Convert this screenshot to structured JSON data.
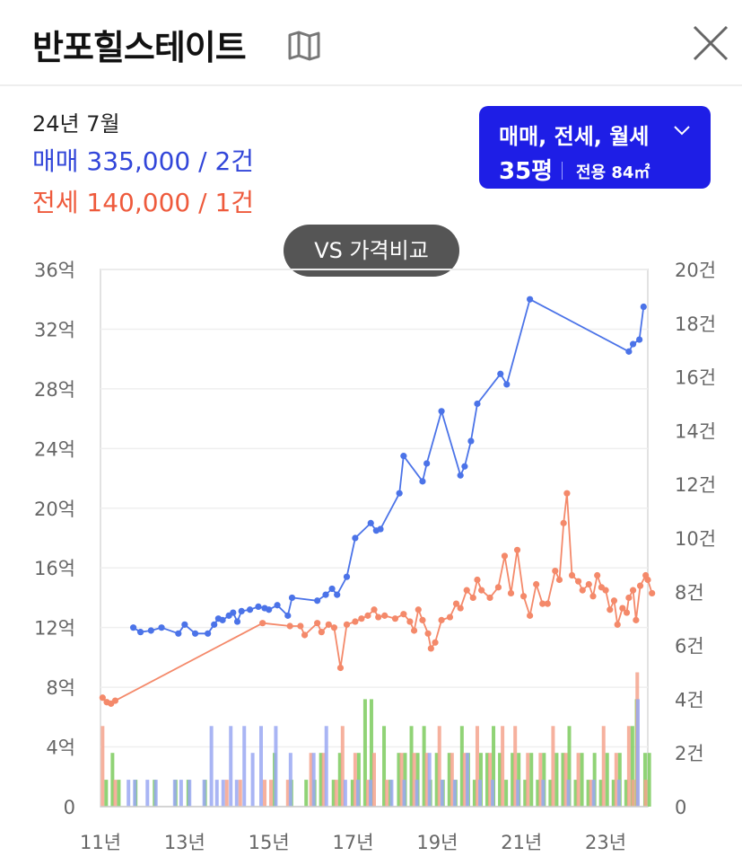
{
  "header": {
    "title": "반포힐스테이트",
    "map_icon": "map-icon",
    "close_icon": "close-icon"
  },
  "summary": {
    "period": "24년 7월",
    "sale_line": "매매 335,000 / 2건",
    "jeonse_line": "전세 140,000 / 1건"
  },
  "filter": {
    "types_label": "매매, 전세, 월세",
    "size_label": "35평",
    "area_label": "전용 84㎡"
  },
  "vs_button": {
    "label": "VS 가격비교"
  },
  "colors": {
    "sale": "#4b73e8",
    "jeonse": "#f4896a",
    "volume_sale": "#9aa8f2",
    "volume_jeonse": "#f5a38d",
    "volume_wolse": "#7ccb5e",
    "brand": "#1e1ee6"
  },
  "chart_data": {
    "type": "line",
    "x_unit": "year",
    "xlim": [
      2011.0,
      2024.0
    ],
    "y_left_lim": [
      0,
      36
    ],
    "y_left_ticks": [
      "0",
      "4억",
      "8억",
      "12억",
      "16억",
      "20억",
      "24억",
      "28억",
      "32억",
      "36억"
    ],
    "y_right_lim": [
      0,
      20
    ],
    "y_right_ticks": [
      "0",
      "2건",
      "4건",
      "6건",
      "8건",
      "10건",
      "12건",
      "14건",
      "16건",
      "18건",
      "20건"
    ],
    "x_ticks": [
      {
        "label": "11년",
        "x": 2011.0
      },
      {
        "label": "13년",
        "x": 2013.0
      },
      {
        "label": "15년",
        "x": 2015.0
      },
      {
        "label": "17년",
        "x": 2017.0
      },
      {
        "label": "19년",
        "x": 2019.0
      },
      {
        "label": "21년",
        "x": 2021.0
      },
      {
        "label": "23년",
        "x": 2023.0
      }
    ],
    "grid": true,
    "series": [
      {
        "key": "sale",
        "points": [
          [
            2011.78,
            12.0
          ],
          [
            2011.95,
            11.7
          ],
          [
            2012.2,
            11.8
          ],
          [
            2012.45,
            12.0
          ],
          [
            2012.85,
            11.6
          ],
          [
            2013.0,
            12.2
          ],
          [
            2013.25,
            11.6
          ],
          [
            2013.55,
            11.6
          ],
          [
            2013.7,
            12.2
          ],
          [
            2013.8,
            12.6
          ],
          [
            2013.9,
            12.5
          ],
          [
            2014.05,
            12.8
          ],
          [
            2014.15,
            13.0
          ],
          [
            2014.25,
            12.4
          ],
          [
            2014.35,
            13.1
          ],
          [
            2014.55,
            13.2
          ],
          [
            2014.75,
            13.4
          ],
          [
            2014.9,
            13.3
          ],
          [
            2015.0,
            13.2
          ],
          [
            2015.2,
            13.5
          ],
          [
            2015.45,
            12.8
          ],
          [
            2015.55,
            14.0
          ],
          [
            2016.15,
            13.8
          ],
          [
            2016.35,
            14.2
          ],
          [
            2016.5,
            14.6
          ],
          [
            2016.62,
            14.2
          ],
          [
            2016.85,
            15.4
          ],
          [
            2017.05,
            18.0
          ],
          [
            2017.42,
            19.0
          ],
          [
            2017.55,
            18.5
          ],
          [
            2017.65,
            18.6
          ],
          [
            2018.1,
            21.0
          ],
          [
            2018.2,
            23.5
          ],
          [
            2018.65,
            21.8
          ],
          [
            2018.75,
            23.0
          ],
          [
            2019.1,
            26.5
          ],
          [
            2019.55,
            22.2
          ],
          [
            2019.65,
            22.8
          ],
          [
            2019.8,
            24.5
          ],
          [
            2019.95,
            27.0
          ],
          [
            2020.5,
            29.0
          ],
          [
            2020.65,
            28.3
          ],
          [
            2021.2,
            34.0
          ],
          [
            2023.55,
            30.5
          ],
          [
            2023.65,
            31.0
          ],
          [
            2023.8,
            31.3
          ],
          [
            2023.9,
            33.5
          ]
        ]
      },
      {
        "key": "jeonse",
        "points": [
          [
            2011.05,
            7.3
          ],
          [
            2011.15,
            7.0
          ],
          [
            2011.25,
            6.9
          ],
          [
            2011.35,
            7.1
          ],
          [
            2014.85,
            12.3
          ],
          [
            2015.5,
            12.1
          ],
          [
            2015.75,
            12.1
          ],
          [
            2015.85,
            11.5
          ],
          [
            2016.15,
            12.3
          ],
          [
            2016.25,
            11.7
          ],
          [
            2016.42,
            12.2
          ],
          [
            2016.55,
            12.0
          ],
          [
            2016.7,
            9.3
          ],
          [
            2016.85,
            12.2
          ],
          [
            2017.05,
            12.4
          ],
          [
            2017.2,
            12.6
          ],
          [
            2017.35,
            12.8
          ],
          [
            2017.5,
            13.2
          ],
          [
            2017.6,
            12.7
          ],
          [
            2017.75,
            12.8
          ],
          [
            2018.0,
            12.6
          ],
          [
            2018.2,
            12.9
          ],
          [
            2018.35,
            12.4
          ],
          [
            2018.45,
            11.8
          ],
          [
            2018.55,
            13.2
          ],
          [
            2018.65,
            12.5
          ],
          [
            2018.78,
            11.6
          ],
          [
            2018.85,
            10.6
          ],
          [
            2018.95,
            11.0
          ],
          [
            2019.1,
            12.5
          ],
          [
            2019.3,
            12.7
          ],
          [
            2019.45,
            13.6
          ],
          [
            2019.55,
            13.3
          ],
          [
            2019.7,
            14.5
          ],
          [
            2019.85,
            14.0
          ],
          [
            2019.95,
            15.2
          ],
          [
            2020.05,
            14.5
          ],
          [
            2020.25,
            14.0
          ],
          [
            2020.45,
            14.7
          ],
          [
            2020.6,
            16.8
          ],
          [
            2020.75,
            14.3
          ],
          [
            2020.9,
            17.2
          ],
          [
            2021.05,
            14.1
          ],
          [
            2021.2,
            12.8
          ],
          [
            2021.35,
            14.9
          ],
          [
            2021.5,
            13.6
          ],
          [
            2021.62,
            13.6
          ],
          [
            2021.8,
            15.8
          ],
          [
            2021.9,
            15.2
          ],
          [
            2022.0,
            19.0
          ],
          [
            2022.08,
            21.0
          ],
          [
            2022.2,
            15.5
          ],
          [
            2022.35,
            15.1
          ],
          [
            2022.45,
            14.5
          ],
          [
            2022.6,
            14.9
          ],
          [
            2022.7,
            14.1
          ],
          [
            2022.8,
            15.5
          ],
          [
            2022.9,
            14.7
          ],
          [
            2023.0,
            14.5
          ],
          [
            2023.1,
            13.2
          ],
          [
            2023.2,
            13.8
          ],
          [
            2023.28,
            12.2
          ],
          [
            2023.4,
            13.3
          ],
          [
            2023.5,
            13.0
          ],
          [
            2023.55,
            14.0
          ],
          [
            2023.65,
            14.5
          ],
          [
            2023.72,
            12.5
          ],
          [
            2023.82,
            14.8
          ],
          [
            2023.95,
            15.5
          ],
          [
            2024.0,
            15.2
          ],
          [
            2024.1,
            14.3
          ]
        ]
      }
    ],
    "volume_bars": [
      {
        "x": 2011.05,
        "jeonse": 3.0,
        "wolse": 1.0
      },
      {
        "x": 2011.2,
        "wolse": 2.0
      },
      {
        "x": 2011.35,
        "jeonse": 1.0,
        "wolse": 1.0
      },
      {
        "x": 2011.75,
        "sale": 1.0,
        "wolse": 1.0
      },
      {
        "x": 2011.9,
        "sale": 1.0
      },
      {
        "x": 2012.2,
        "sale": 1.0,
        "wolse": 1.0
      },
      {
        "x": 2012.4,
        "sale": 1.0
      },
      {
        "x": 2012.7,
        "wolse": 1.0
      },
      {
        "x": 2012.85,
        "sale": 1.0
      },
      {
        "x": 2013.0,
        "sale": 1.0,
        "wolse": 1.0
      },
      {
        "x": 2013.2,
        "sale": 1.0
      },
      {
        "x": 2013.4,
        "wolse": 1.0
      },
      {
        "x": 2013.55,
        "sale": 1.0
      },
      {
        "x": 2013.72,
        "sale": 3.0
      },
      {
        "x": 2013.85,
        "sale": 1.0
      },
      {
        "x": 2014.0,
        "sale": 1.0,
        "jeonse": 1.0
      },
      {
        "x": 2014.18,
        "sale": 3.0
      },
      {
        "x": 2014.32,
        "sale": 1.0,
        "jeonse": 1.0
      },
      {
        "x": 2014.5,
        "sale": 3.0
      },
      {
        "x": 2014.7,
        "sale": 2.0
      },
      {
        "x": 2014.9,
        "sale": 3.0,
        "jeonse": 1.0
      },
      {
        "x": 2015.05,
        "jeonse": 1.0,
        "wolse": 2.0
      },
      {
        "x": 2015.25,
        "sale": 3.0
      },
      {
        "x": 2015.45,
        "jeonse": 1.0,
        "wolse": 1.0
      },
      {
        "x": 2015.6,
        "sale": 2.0
      },
      {
        "x": 2015.8,
        "wolse": 1.0
      },
      {
        "x": 2016.0,
        "jeonse": 2.0,
        "wolse": 1.0
      },
      {
        "x": 2016.15,
        "sale": 2.0,
        "wolse": 2.0
      },
      {
        "x": 2016.3,
        "jeonse": 2.0
      },
      {
        "x": 2016.45,
        "sale": 3.0,
        "wolse": 1.0
      },
      {
        "x": 2016.6,
        "jeonse": 1.0,
        "wolse": 2.0
      },
      {
        "x": 2016.75,
        "jeonse": 3.0
      },
      {
        "x": 2016.9,
        "sale": 1.0,
        "wolse": 1.0
      },
      {
        "x": 2017.05,
        "jeonse": 2.0,
        "wolse": 2.0
      },
      {
        "x": 2017.2,
        "sale": 1.0,
        "wolse": 4.0
      },
      {
        "x": 2017.35,
        "jeonse": 1.0,
        "wolse": 4.0
      },
      {
        "x": 2017.5,
        "sale": 1.0,
        "jeonse": 2.0
      },
      {
        "x": 2017.65,
        "wolse": 3.0
      },
      {
        "x": 2017.8,
        "jeonse": 1.0,
        "wolse": 1.0
      },
      {
        "x": 2018.0,
        "sale": 1.0,
        "wolse": 2.0
      },
      {
        "x": 2018.15,
        "jeonse": 2.0,
        "wolse": 2.0
      },
      {
        "x": 2018.3,
        "sale": 1.0,
        "wolse": 3.0
      },
      {
        "x": 2018.45,
        "jeonse": 2.0,
        "wolse": 2.0
      },
      {
        "x": 2018.6,
        "sale": 1.0,
        "wolse": 3.0
      },
      {
        "x": 2018.75,
        "jeonse": 2.0,
        "wolse": 1.0
      },
      {
        "x": 2018.9,
        "sale": 2.0,
        "wolse": 2.0
      },
      {
        "x": 2019.05,
        "jeonse": 3.0,
        "wolse": 1.0
      },
      {
        "x": 2019.2,
        "sale": 1.0,
        "wolse": 2.0
      },
      {
        "x": 2019.35,
        "jeonse": 2.0,
        "wolse": 1.0
      },
      {
        "x": 2019.5,
        "sale": 1.0,
        "wolse": 3.0
      },
      {
        "x": 2019.65,
        "jeonse": 2.0,
        "wolse": 2.0
      },
      {
        "x": 2019.8,
        "sale": 2.0,
        "wolse": 1.0
      },
      {
        "x": 2019.95,
        "jeonse": 3.0,
        "wolse": 2.0
      },
      {
        "x": 2020.1,
        "sale": 1.0,
        "wolse": 2.0
      },
      {
        "x": 2020.25,
        "jeonse": 2.0,
        "wolse": 3.0
      },
      {
        "x": 2020.4,
        "sale": 1.0,
        "wolse": 2.0
      },
      {
        "x": 2020.55,
        "jeonse": 3.0,
        "wolse": 1.0
      },
      {
        "x": 2020.7,
        "wolse": 2.0
      },
      {
        "x": 2020.85,
        "jeonse": 3.0,
        "wolse": 2.0
      },
      {
        "x": 2021.0,
        "sale": 1.0,
        "wolse": 1.0
      },
      {
        "x": 2021.15,
        "jeonse": 2.0,
        "wolse": 2.0
      },
      {
        "x": 2021.3,
        "wolse": 1.0
      },
      {
        "x": 2021.45,
        "jeonse": 2.0,
        "wolse": 2.0
      },
      {
        "x": 2021.6,
        "sale": 1.0,
        "wolse": 1.0
      },
      {
        "x": 2021.75,
        "jeonse": 3.0,
        "wolse": 2.0
      },
      {
        "x": 2021.9,
        "wolse": 2.0
      },
      {
        "x": 2022.05,
        "jeonse": 2.0,
        "wolse": 3.0
      },
      {
        "x": 2022.2,
        "sale": 1.0,
        "wolse": 1.0
      },
      {
        "x": 2022.35,
        "jeonse": 2.0,
        "wolse": 2.0
      },
      {
        "x": 2022.5,
        "wolse": 1.0
      },
      {
        "x": 2022.65,
        "jeonse": 1.0,
        "wolse": 2.0
      },
      {
        "x": 2022.8,
        "sale": 1.0,
        "wolse": 1.0
      },
      {
        "x": 2022.95,
        "jeonse": 3.0,
        "wolse": 2.0
      },
      {
        "x": 2023.1,
        "wolse": 1.0
      },
      {
        "x": 2023.25,
        "jeonse": 2.0,
        "wolse": 2.0
      },
      {
        "x": 2023.4,
        "sale": 1.0,
        "wolse": 1.0
      },
      {
        "x": 2023.55,
        "jeonse": 3.0,
        "wolse": 3.0
      },
      {
        "x": 2023.65,
        "jeonse": 1.0,
        "wolse": 4.0
      },
      {
        "x": 2023.75,
        "jeonse": 5.0
      },
      {
        "x": 2023.85,
        "sale": 4.0,
        "wolse": 2.0
      },
      {
        "x": 2023.95,
        "jeonse": 1.0,
        "wolse": 2.0
      }
    ]
  }
}
